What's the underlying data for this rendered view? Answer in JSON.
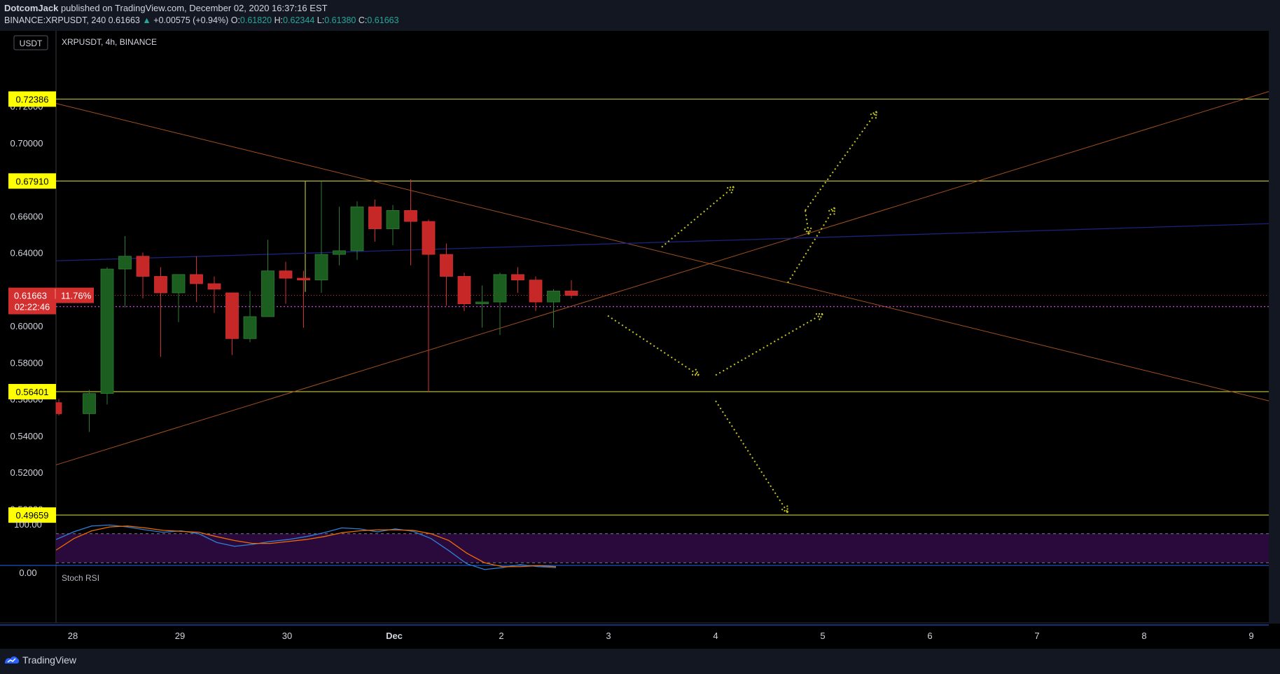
{
  "header": {
    "author": "DotcomJack",
    "published_text": "published on TradingView.com, December 02, 2020 16:37:16 EST",
    "symbol_line": "BINANCE:XRPUSDT, 240",
    "last": "0.61663",
    "change_arrow": "▲",
    "change": "+0.00575 (+0.94%)",
    "o_label": "O:",
    "o_value": "0.61820",
    "h_label": "H:",
    "h_value": "0.62344",
    "l_label": "L:",
    "l_value": "0.61380",
    "c_label": "C:",
    "c_value": "0.61663"
  },
  "chart_header": {
    "currency_button": "USDT",
    "title": "XRPUSDT, 4h, BINANCE"
  },
  "footer": {
    "brand": "TradingView"
  },
  "colors": {
    "background": "#000000",
    "outer": "#131722",
    "candle_up": "#1b5e20",
    "candle_down": "#c62828",
    "level_line": "#b5b53c",
    "trend_line": "#a0521d",
    "blue_line": "#1a237e",
    "arrow": "#c8c820",
    "label_bg": "#ffff00",
    "price_tag": "#d32f2f",
    "stoch_k": "#2f7fd8",
    "stoch_d": "#ef6c00",
    "stoch_band": "#2a0a3d"
  },
  "chart_data": {
    "type": "candlestick",
    "timeframe": "4h",
    "x_ticks": [
      "28",
      "29",
      "30",
      "Dec",
      "2",
      "3",
      "4",
      "5",
      "6",
      "7",
      "8",
      "9"
    ],
    "y_ticks": [
      "0.72000",
      "0.70000",
      "0.66000",
      "0.64000",
      "0.60000",
      "0.58000",
      "0.56000",
      "0.54000",
      "0.52000",
      "0.50000"
    ],
    "ylim": [
      0.4915,
      0.7345
    ],
    "candles": [
      {
        "t": 0,
        "o": 0.558,
        "h": 0.56,
        "l": 0.551,
        "c": 0.552
      },
      {
        "t": 1,
        "o": 0.552,
        "h": 0.565,
        "l": 0.542,
        "c": 0.563
      },
      {
        "t": 2,
        "o": 0.563,
        "h": 0.632,
        "l": 0.557,
        "c": 0.631
      },
      {
        "t": 3,
        "o": 0.631,
        "h": 0.649,
        "l": 0.61,
        "c": 0.638
      },
      {
        "t": 4,
        "o": 0.638,
        "h": 0.64,
        "l": 0.615,
        "c": 0.627
      },
      {
        "t": 5,
        "o": 0.627,
        "h": 0.632,
        "l": 0.583,
        "c": 0.618
      },
      {
        "t": 6,
        "o": 0.618,
        "h": 0.628,
        "l": 0.602,
        "c": 0.628
      },
      {
        "t": 7,
        "o": 0.628,
        "h": 0.638,
        "l": 0.613,
        "c": 0.623
      },
      {
        "t": 8,
        "o": 0.623,
        "h": 0.627,
        "l": 0.607,
        "c": 0.62
      },
      {
        "t": 9,
        "o": 0.618,
        "h": 0.618,
        "l": 0.584,
        "c": 0.593
      },
      {
        "t": 10,
        "o": 0.593,
        "h": 0.619,
        "l": 0.591,
        "c": 0.605
      },
      {
        "t": 11,
        "o": 0.605,
        "h": 0.647,
        "l": 0.605,
        "c": 0.63
      },
      {
        "t": 12,
        "o": 0.63,
        "h": 0.635,
        "l": 0.612,
        "c": 0.626
      },
      {
        "t": 13,
        "o": 0.626,
        "h": 0.63,
        "l": 0.599,
        "c": 0.625
      },
      {
        "t": 14,
        "o": 0.625,
        "h": 0.679,
        "l": 0.618,
        "c": 0.639
      },
      {
        "t": 15,
        "o": 0.639,
        "h": 0.665,
        "l": 0.633,
        "c": 0.641
      },
      {
        "t": 16,
        "o": 0.641,
        "h": 0.668,
        "l": 0.636,
        "c": 0.665
      },
      {
        "t": 17,
        "o": 0.665,
        "h": 0.669,
        "l": 0.646,
        "c": 0.653
      },
      {
        "t": 18,
        "o": 0.653,
        "h": 0.666,
        "l": 0.644,
        "c": 0.663
      },
      {
        "t": 19,
        "o": 0.663,
        "h": 0.68,
        "l": 0.633,
        "c": 0.657
      },
      {
        "t": 20,
        "o": 0.657,
        "h": 0.658,
        "l": 0.564,
        "c": 0.639
      },
      {
        "t": 21,
        "o": 0.639,
        "h": 0.645,
        "l": 0.611,
        "c": 0.627
      },
      {
        "t": 22,
        "o": 0.627,
        "h": 0.629,
        "l": 0.608,
        "c": 0.612
      },
      {
        "t": 23,
        "o": 0.612,
        "h": 0.622,
        "l": 0.599,
        "c": 0.613
      },
      {
        "t": 24,
        "o": 0.613,
        "h": 0.629,
        "l": 0.595,
        "c": 0.628
      },
      {
        "t": 25,
        "o": 0.628,
        "h": 0.632,
        "l": 0.618,
        "c": 0.625
      },
      {
        "t": 26,
        "o": 0.625,
        "h": 0.627,
        "l": 0.608,
        "c": 0.613
      },
      {
        "t": 27,
        "o": 0.613,
        "h": 0.62,
        "l": 0.599,
        "c": 0.619
      },
      {
        "t": 28,
        "o": 0.619,
        "h": 0.625,
        "l": 0.615,
        "c": 0.6166
      }
    ],
    "levels": [
      {
        "value": 0.72386,
        "label": "0.72386"
      },
      {
        "value": 0.6791,
        "label": "0.67910"
      },
      {
        "value": 0.56401,
        "label": "0.56401"
      },
      {
        "value": 0.49659,
        "label": "0.49659"
      }
    ],
    "last_price": {
      "value": 0.61663,
      "label": "0.61663",
      "pct": "11.76%"
    },
    "countdown": {
      "label": "02:22:46",
      "value": 0.6105
    },
    "stoch_rsi": {
      "title": "Stoch RSI",
      "ticks": [
        "100.00",
        "0.00"
      ],
      "upper_band": 80,
      "lower_band": 20,
      "k": [
        68,
        84,
        96,
        98,
        94,
        88,
        83,
        86,
        80,
        62,
        54,
        58,
        64,
        68,
        74,
        82,
        92,
        90,
        84,
        90,
        85,
        70,
        45,
        18,
        6,
        10,
        16,
        12,
        10
      ],
      "d": [
        46,
        70,
        86,
        94,
        96,
        92,
        87,
        85,
        83,
        74,
        66,
        60,
        60,
        64,
        68,
        74,
        82,
        86,
        88,
        88,
        87,
        80,
        66,
        40,
        20,
        12,
        12,
        14,
        12
      ]
    }
  }
}
